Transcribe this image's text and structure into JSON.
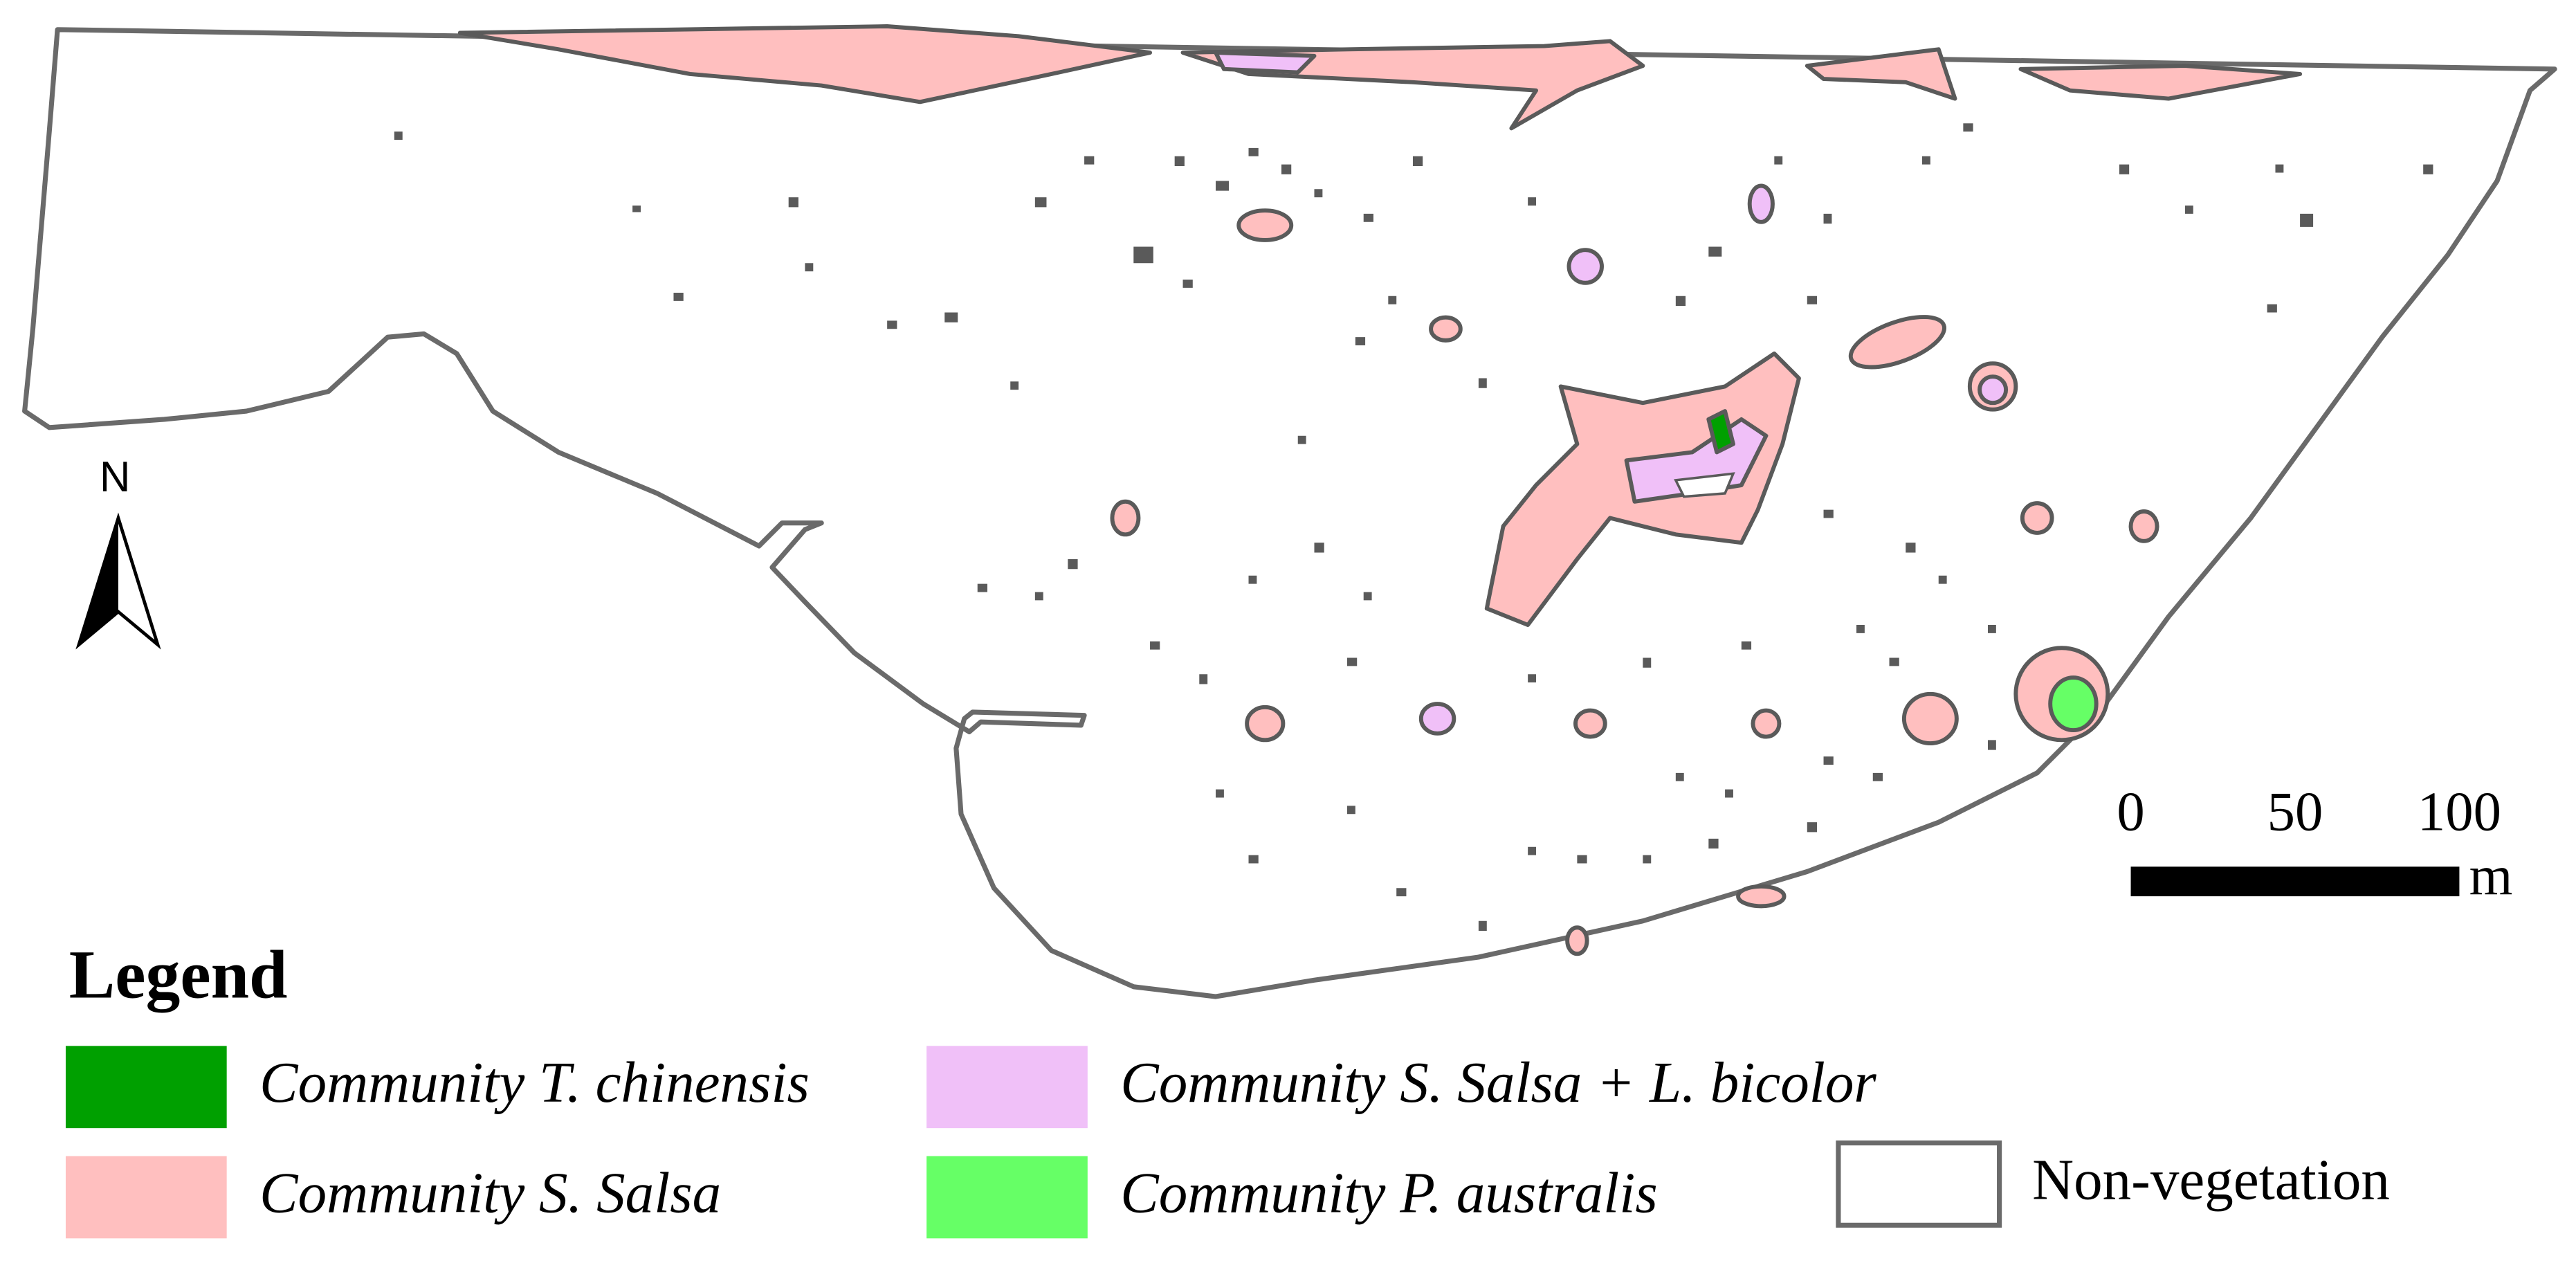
{
  "map": {
    "legend": {
      "title": "Legend",
      "items": [
        {
          "label": "Community T. chinensis",
          "color": "#00a000",
          "italic": true
        },
        {
          "label": "Community S. Salsa + L. bicolor",
          "color": "#f0c0f8",
          "italic": true
        },
        {
          "label": "Community S. Salsa",
          "color": "#ffbfbf",
          "italic": true
        },
        {
          "label": "Community P. australis",
          "color": "#66ff66",
          "italic": true
        },
        {
          "label": "Non-vegetation",
          "color": "#ffffff",
          "italic": false
        }
      ]
    },
    "north_label": "N",
    "scale_bar": {
      "ticks": [
        0,
        50,
        100
      ],
      "unit": "m"
    }
  }
}
